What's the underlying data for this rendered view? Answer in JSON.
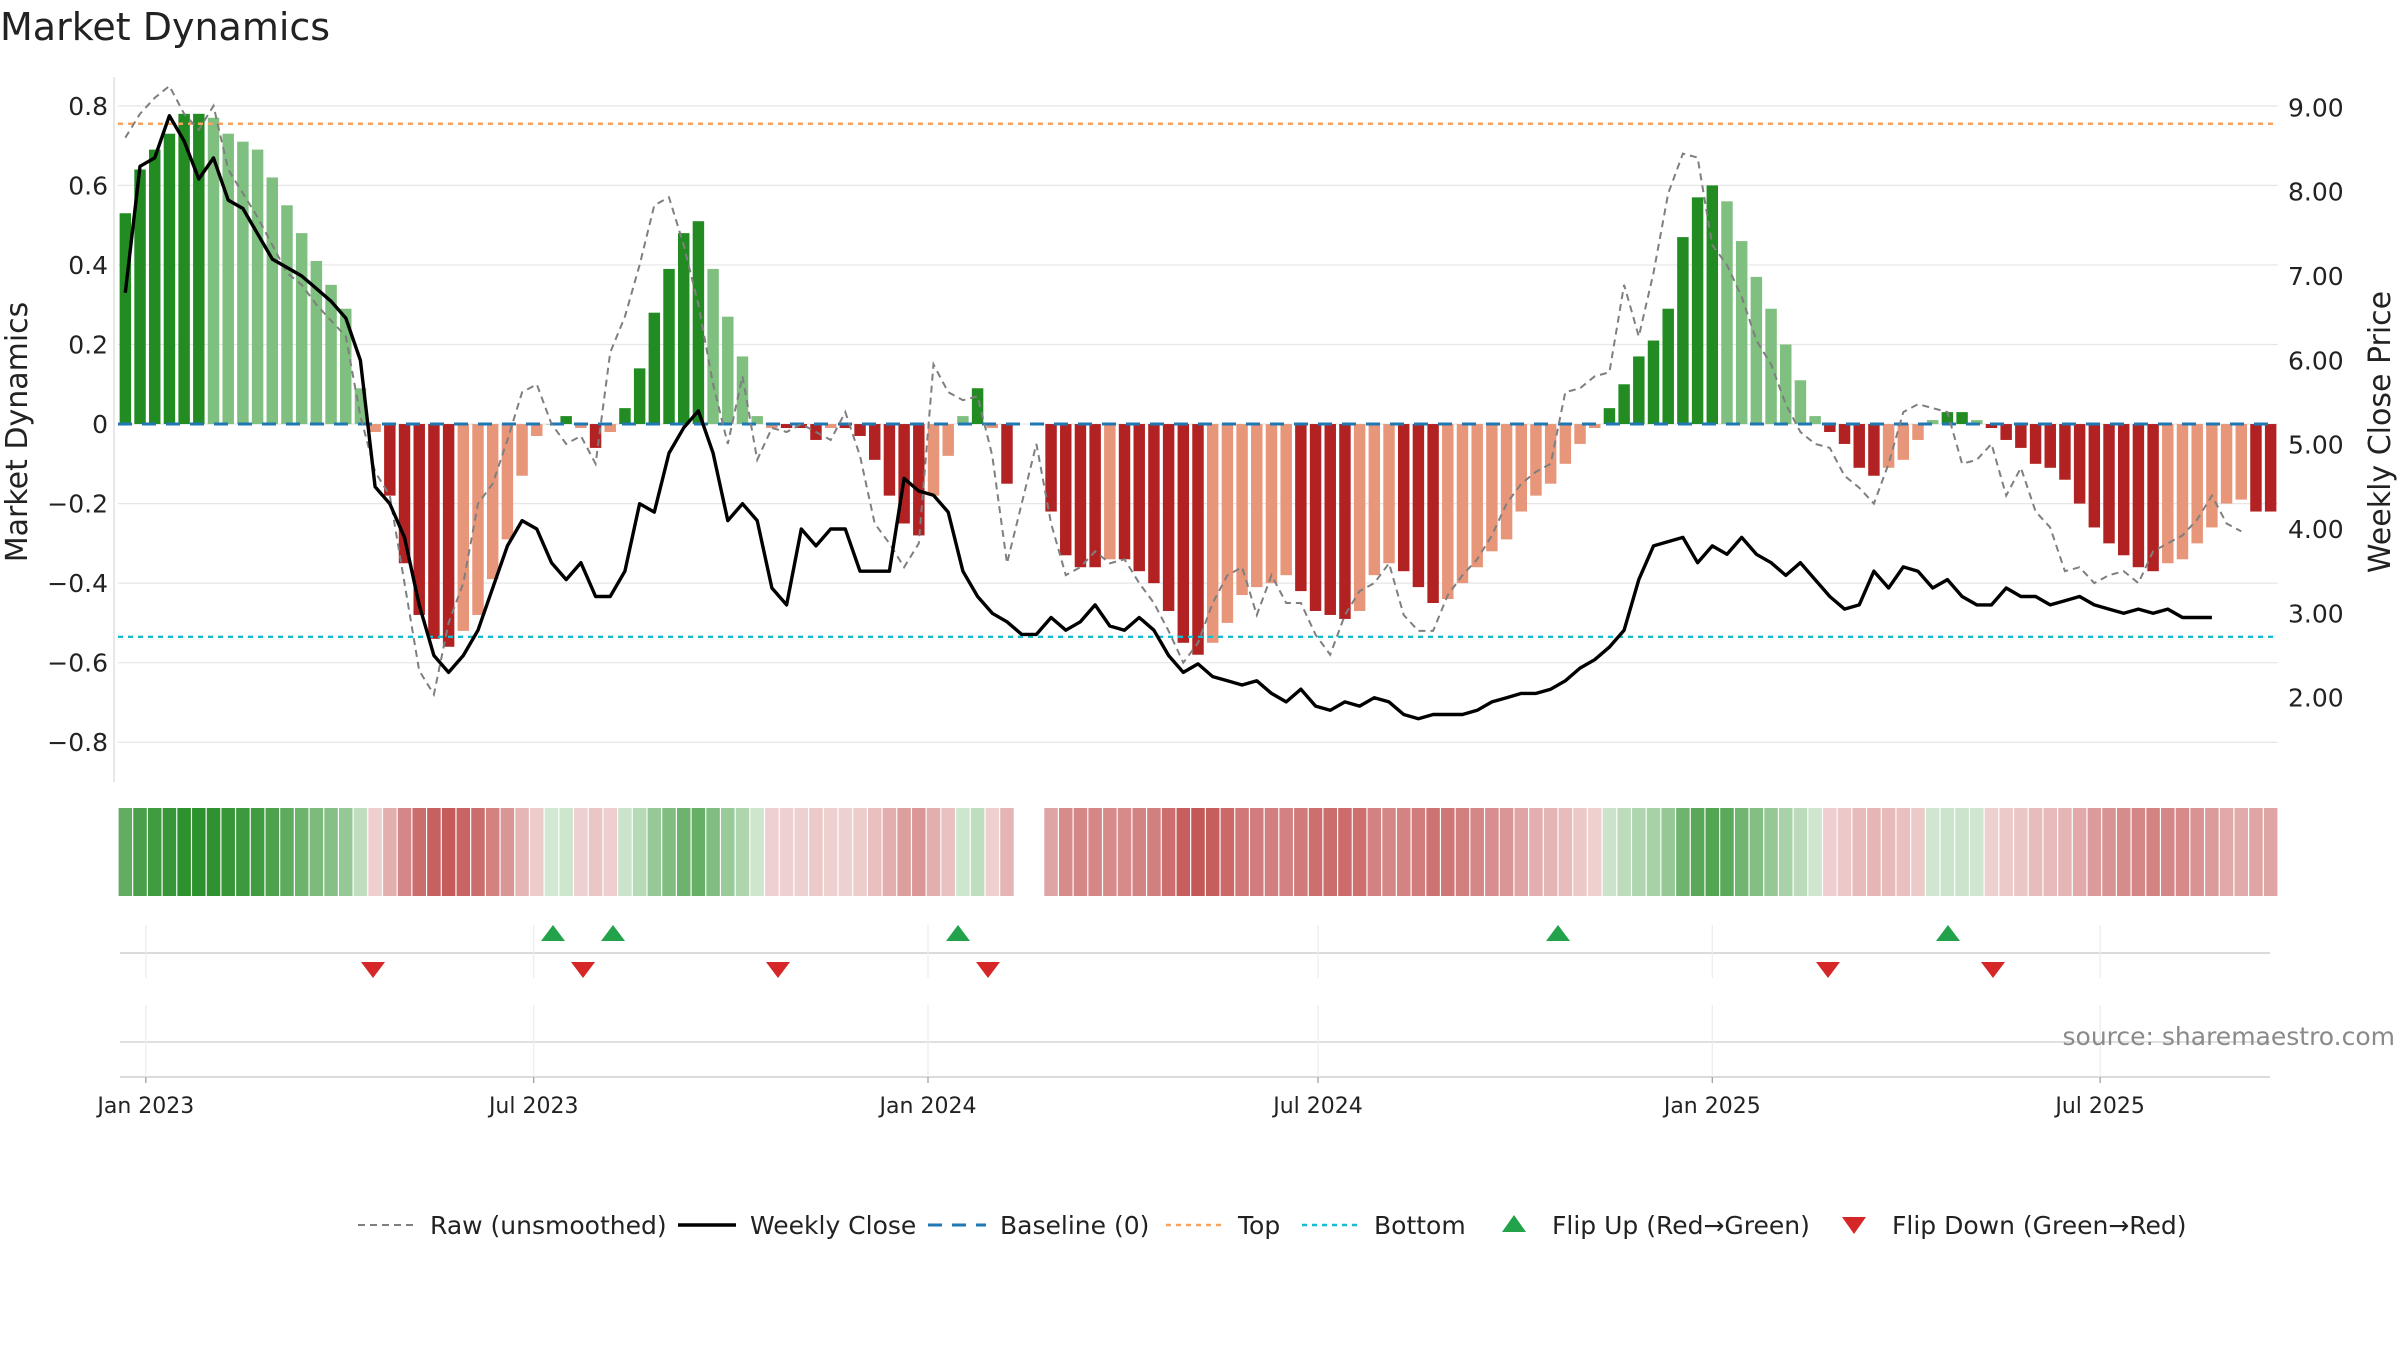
{
  "chart_data": {
    "type": "bar",
    "title": "Market Dynamics",
    "ylabel": "Market Dynamics",
    "y2label": "Weekly Close Price",
    "ylim": [
      -0.9,
      0.86
    ],
    "y2lim": [
      1.0,
      9.3
    ],
    "yticks": [
      0.8,
      0.6,
      0.4,
      0.2,
      0,
      -0.2,
      -0.4,
      -0.6,
      -0.8
    ],
    "ytick_labels": [
      "0.8",
      "0.6",
      "0.4",
      "0.2",
      "0",
      "−0.2",
      "−0.4",
      "−0.6",
      "−0.8"
    ],
    "y2ticks": [
      9,
      8,
      7,
      6,
      5,
      4,
      3,
      2
    ],
    "y2tick_labels": [
      "9.00",
      "8.00",
      "7.00",
      "6.00",
      "5.00",
      "4.00",
      "3.00",
      "2.00"
    ],
    "x_start": "2022-12-19",
    "x_end": "2025-09-22",
    "xticks": [
      {
        "date": "2023-01-01",
        "label": "Jan 2023"
      },
      {
        "date": "2023-07-01",
        "label": "Jul 2023"
      },
      {
        "date": "2024-01-01",
        "label": "Jan 2024"
      },
      {
        "date": "2024-07-01",
        "label": "Jul 2024"
      },
      {
        "date": "2025-01-01",
        "label": "Jan 2025"
      },
      {
        "date": "2025-07-01",
        "label": "Jul 2025"
      }
    ],
    "top_level": 0.755,
    "bottom_level": -0.535,
    "baseline": 0,
    "gap_weeks": [
      61,
      62
    ],
    "series": [
      {
        "name": "Market Dynamics",
        "values": [
          0.53,
          0.64,
          0.69,
          0.73,
          0.78,
          0.78,
          0.77,
          0.73,
          0.71,
          0.69,
          0.62,
          0.55,
          0.48,
          0.41,
          0.35,
          0.29,
          0.09,
          -0.02,
          -0.18,
          -0.35,
          -0.48,
          -0.54,
          -0.56,
          -0.52,
          -0.48,
          -0.39,
          -0.29,
          -0.13,
          -0.03,
          0.0,
          0.02,
          -0.01,
          -0.06,
          -0.02,
          0.04,
          0.14,
          0.28,
          0.39,
          0.48,
          0.51,
          0.39,
          0.27,
          0.17,
          0.02,
          -0.01,
          -0.01,
          -0.01,
          -0.04,
          -0.01,
          -0.01,
          -0.03,
          -0.09,
          -0.18,
          -0.25,
          -0.28,
          -0.18,
          -0.08,
          0.02,
          0.09,
          -0.01,
          -0.15,
          0,
          0,
          -0.22,
          -0.33,
          -0.36,
          -0.36,
          -0.34,
          -0.34,
          -0.37,
          -0.4,
          -0.47,
          -0.55,
          -0.58,
          -0.55,
          -0.5,
          -0.43,
          -0.41,
          -0.4,
          -0.38,
          -0.42,
          -0.47,
          -0.48,
          -0.49,
          -0.47,
          -0.38,
          -0.35,
          -0.37,
          -0.41,
          -0.45,
          -0.44,
          -0.4,
          -0.36,
          -0.32,
          -0.29,
          -0.22,
          -0.18,
          -0.15,
          -0.1,
          -0.05,
          -0.01,
          0.04,
          0.1,
          0.17,
          0.21,
          0.29,
          0.47,
          0.57,
          0.6,
          0.56,
          0.46,
          0.37,
          0.29,
          0.2,
          0.11,
          0.02,
          -0.02,
          -0.05,
          -0.11,
          -0.13,
          -0.11,
          -0.09,
          -0.04,
          0.01,
          0.03,
          0.03,
          0.01,
          -0.01,
          -0.04,
          -0.06,
          -0.1,
          -0.11,
          -0.14,
          -0.2,
          -0.26,
          -0.3,
          -0.33,
          -0.36,
          -0.37,
          -0.35,
          -0.34,
          -0.3,
          -0.26,
          -0.2,
          -0.19,
          -0.22,
          -0.22
        ]
      },
      {
        "name": "Raw (unsmoothed)",
        "values": [
          0.72,
          0.78,
          0.82,
          0.85,
          0.78,
          0.74,
          0.8,
          0.64,
          0.58,
          0.52,
          0.45,
          0.38,
          0.35,
          0.3,
          0.26,
          0.22,
          0.02,
          -0.12,
          -0.18,
          -0.4,
          -0.62,
          -0.68,
          -0.5,
          -0.4,
          -0.2,
          -0.15,
          -0.04,
          0.08,
          0.1,
          0.0,
          -0.05,
          -0.03,
          -0.1,
          0.18,
          0.27,
          0.4,
          0.55,
          0.57,
          0.45,
          0.3,
          0.1,
          -0.05,
          0.12,
          -0.09,
          -0.01,
          -0.02,
          0.0,
          -0.02,
          -0.04,
          0.03,
          -0.08,
          -0.25,
          -0.3,
          -0.36,
          -0.3,
          0.15,
          0.08,
          0.06,
          0.07,
          -0.08,
          -0.35,
          -0.2,
          -0.05,
          -0.25,
          -0.38,
          -0.36,
          -0.32,
          -0.35,
          -0.34,
          -0.4,
          -0.45,
          -0.52,
          -0.6,
          -0.55,
          -0.45,
          -0.38,
          -0.36,
          -0.48,
          -0.38,
          -0.45,
          -0.45,
          -0.53,
          -0.58,
          -0.48,
          -0.42,
          -0.4,
          -0.35,
          -0.48,
          -0.52,
          -0.52,
          -0.43,
          -0.38,
          -0.34,
          -0.28,
          -0.2,
          -0.15,
          -0.12,
          -0.1,
          0.08,
          0.09,
          0.12,
          0.13,
          0.35,
          0.22,
          0.38,
          0.58,
          0.68,
          0.67,
          0.45,
          0.4,
          0.32,
          0.21,
          0.15,
          0.05,
          -0.02,
          -0.05,
          -0.06,
          -0.13,
          -0.16,
          -0.2,
          -0.1,
          0.03,
          0.05,
          0.04,
          0.03,
          -0.1,
          -0.09,
          -0.05,
          -0.18,
          -0.11,
          -0.22,
          -0.26,
          -0.37,
          -0.36,
          -0.4,
          -0.38,
          -0.37,
          -0.4,
          -0.32,
          -0.3,
          -0.28,
          -0.24,
          -0.18,
          -0.25,
          -0.27
        ]
      },
      {
        "name": "Weekly Close",
        "values": [
          6.8,
          8.3,
          8.4,
          8.9,
          8.6,
          8.15,
          8.4,
          7.9,
          7.8,
          7.5,
          7.2,
          7.1,
          7.0,
          6.85,
          6.7,
          6.5,
          6.0,
          4.5,
          4.3,
          3.9,
          3.1,
          2.5,
          2.3,
          2.5,
          2.8,
          3.3,
          3.8,
          4.1,
          4.0,
          3.6,
          3.4,
          3.6,
          3.2,
          3.2,
          3.5,
          4.3,
          4.2,
          4.9,
          5.2,
          5.4,
          4.9,
          4.1,
          4.3,
          4.1,
          3.3,
          3.1,
          4.0,
          3.8,
          4.0,
          4.0,
          3.5,
          3.5,
          3.5,
          4.6,
          4.45,
          4.4,
          4.2,
          3.5,
          3.2,
          3.0,
          2.9,
          2.75,
          2.75,
          2.95,
          2.8,
          2.9,
          3.1,
          2.85,
          2.8,
          2.95,
          2.8,
          2.5,
          2.3,
          2.4,
          2.25,
          2.2,
          2.15,
          2.2,
          2.05,
          1.95,
          2.1,
          1.9,
          1.85,
          1.95,
          1.9,
          2.0,
          1.95,
          1.8,
          1.75,
          1.8,
          1.8,
          1.8,
          1.85,
          1.95,
          2.0,
          2.05,
          2.05,
          2.1,
          2.2,
          2.35,
          2.45,
          2.6,
          2.8,
          3.4,
          3.8,
          3.85,
          3.9,
          3.6,
          3.8,
          3.7,
          3.9,
          3.7,
          3.6,
          3.45,
          3.6,
          3.4,
          3.2,
          3.05,
          3.1,
          3.5,
          3.3,
          3.55,
          3.5,
          3.3,
          3.4,
          3.2,
          3.1,
          3.1,
          3.3,
          3.2,
          3.2,
          3.1,
          3.15,
          3.2,
          3.1,
          3.05,
          3.0,
          3.05,
          3.0,
          3.05,
          2.95,
          2.95,
          2.95
        ]
      }
    ],
    "flips_up": [
      "2023-07-10",
      "2023-08-07",
      "2024-01-15",
      "2024-10-21",
      "2025-04-21"
    ],
    "flips_down": [
      "2023-04-17",
      "2023-07-24",
      "2023-10-23",
      "2024-01-29",
      "2025-02-24",
      "2025-05-12"
    ],
    "legend": [
      {
        "label": "Raw (unsmoothed)",
        "style": "dashed-gray"
      },
      {
        "label": "Weekly Close",
        "style": "solid-black"
      },
      {
        "label": "Baseline (0)",
        "style": "dashed-blue"
      },
      {
        "label": "Top",
        "style": "dotted-orange"
      },
      {
        "label": "Bottom",
        "style": "dotted-cyan"
      },
      {
        "label": "Flip Up (Red→Green)",
        "style": "triangle-up-green"
      },
      {
        "label": "Flip Down (Green→Red)",
        "style": "triangle-down-red"
      }
    ],
    "legend_position": "bottom-center",
    "source": "source: sharemaestro.com",
    "colors": {
      "strong_green": "#228b22",
      "light_green": "#7fbf7f",
      "strong_red": "#b22222",
      "light_red": "#e8967a",
      "raw_line": "#7f7f7f",
      "close_line": "#000000",
      "baseline": "#1f77b4",
      "top": "#f4a460",
      "bottom": "#17becf",
      "flip_up": "#22a24a",
      "flip_down": "#d62728"
    }
  }
}
